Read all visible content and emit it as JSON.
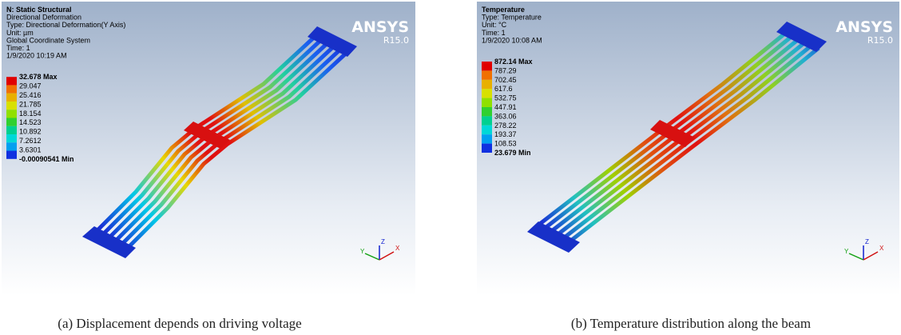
{
  "panels": [
    {
      "header": [
        "N: Static Structural",
        "Directional Deformation",
        "Type: Directional Deformation(Y Axis)",
        "Unit: µm",
        "Global Coordinate System",
        "Time: 1",
        "1/9/2020 10:19 AM"
      ],
      "brand": "ANSYS",
      "version": "R15.0",
      "legend": [
        "32.678 Max",
        "29.047",
        "25.416",
        "21.785",
        "18.154",
        "14.523",
        "10.892",
        "7.2612",
        "3.6301",
        "-0.00090541 Min"
      ],
      "axes": [
        "Y",
        "Z",
        "X"
      ],
      "caption": "(a)  Displacement depends on driving voltage"
    },
    {
      "header": [
        "Temperature",
        "Type: Temperature",
        "Unit: °C",
        "Time: 1",
        "1/9/2020 10:08 AM"
      ],
      "brand": "ANSYS",
      "version": "R15.0",
      "legend": [
        "872.14 Max",
        "787.29",
        "702.45",
        "617.6",
        "532.75",
        "447.91",
        "363.06",
        "278.22",
        "193.37",
        "108.53",
        "23.679 Min"
      ],
      "axes": [
        "Y",
        "Z",
        "X"
      ],
      "caption": "(b)  Temperature distribution along the beam"
    }
  ]
}
